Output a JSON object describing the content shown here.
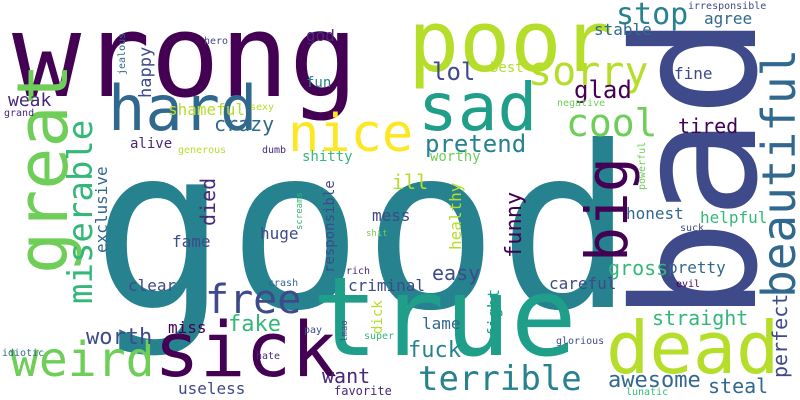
{
  "background": "#ffffff",
  "palette": {
    "dark_purple": "#440154",
    "purple": "#482878",
    "indigo": "#3e4a89",
    "blue": "#31688e",
    "teal_blue": "#26828e",
    "teal": "#1f9e89",
    "green": "#35b779",
    "light_green": "#6ece58",
    "lime": "#b5de2b",
    "yellow": "#fde725"
  },
  "words": [
    {
      "text": "good",
      "color": "#26828e"
    },
    {
      "text": "bad",
      "color": "#3e4a89"
    },
    {
      "text": "wrong",
      "color": "#440154"
    },
    {
      "text": "true",
      "color": "#1f9e89"
    },
    {
      "text": "poor",
      "color": "#b5de2b"
    },
    {
      "text": "hard",
      "color": "#31688e"
    },
    {
      "text": "sad",
      "color": "#1f9e89"
    },
    {
      "text": "sick",
      "color": "#440154"
    },
    {
      "text": "dead",
      "color": "#b5de2b"
    },
    {
      "text": "great",
      "color": "#6ece58"
    },
    {
      "text": "big",
      "color": "#440154"
    },
    {
      "text": "beautiful",
      "color": "#31688e"
    },
    {
      "text": "nice",
      "color": "#fde725"
    },
    {
      "text": "weird",
      "color": "#6ece58"
    },
    {
      "text": "sorry",
      "color": "#b5de2b"
    },
    {
      "text": "miserable",
      "color": "#35b779"
    },
    {
      "text": "free",
      "color": "#3e4a89"
    },
    {
      "text": "terrible",
      "color": "#26828e"
    },
    {
      "text": "cool",
      "color": "#6ece58"
    },
    {
      "text": "stop",
      "color": "#26828e"
    },
    {
      "text": "perfect",
      "color": "#3e4a89"
    },
    {
      "text": "pretend",
      "color": "#26828e"
    },
    {
      "text": "lol",
      "color": "#3e4a89"
    },
    {
      "text": "glad",
      "color": "#440154"
    },
    {
      "text": "tired",
      "color": "#440154"
    },
    {
      "text": "funny",
      "color": "#440154"
    },
    {
      "text": "died",
      "color": "#482878"
    },
    {
      "text": "fake",
      "color": "#35b779"
    },
    {
      "text": "worth",
      "color": "#3e4a89"
    },
    {
      "text": "fuck",
      "color": "#26828e"
    },
    {
      "text": "awesome",
      "color": "#31688e"
    },
    {
      "text": "easy",
      "color": "#3e4a89"
    },
    {
      "text": "want",
      "color": "#482878"
    },
    {
      "text": "crazy",
      "color": "#31688e"
    },
    {
      "text": "happy",
      "color": "#3e4a89"
    },
    {
      "text": "ill",
      "color": "#b5de2b"
    },
    {
      "text": "gross",
      "color": "#35b779"
    },
    {
      "text": "straight",
      "color": "#35b779"
    },
    {
      "text": "steal",
      "color": "#31688e"
    },
    {
      "text": "weak",
      "color": "#482878"
    },
    {
      "text": "shameful",
      "color": "#b5de2b"
    },
    {
      "text": "agree",
      "color": "#31688e"
    },
    {
      "text": "stable",
      "color": "#31688e"
    },
    {
      "text": "fine",
      "color": "#3e4a89"
    },
    {
      "text": "god",
      "color": "#482878"
    },
    {
      "text": "fun",
      "color": "#26828e"
    },
    {
      "text": "best",
      "color": "#b5de2b"
    },
    {
      "text": "alive",
      "color": "#482878"
    },
    {
      "text": "shitty",
      "color": "#35b779"
    },
    {
      "text": "worthy",
      "color": "#6ece58"
    },
    {
      "text": "exclusive",
      "color": "#31688e"
    },
    {
      "text": "fame",
      "color": "#3e4a89"
    },
    {
      "text": "huge",
      "color": "#3e4a89"
    },
    {
      "text": "mess",
      "color": "#3e4a89"
    },
    {
      "text": "responsible",
      "color": "#3e4a89"
    },
    {
      "text": "healthy",
      "color": "#b5de2b"
    },
    {
      "text": "honest",
      "color": "#31688e"
    },
    {
      "text": "helpful",
      "color": "#35b779"
    },
    {
      "text": "clear",
      "color": "#3e4a89"
    },
    {
      "text": "criminal",
      "color": "#3e4a89"
    },
    {
      "text": "careful",
      "color": "#3e4a89"
    },
    {
      "text": "pretty",
      "color": "#31688e"
    },
    {
      "text": "miss",
      "color": "#440154"
    },
    {
      "text": "lame",
      "color": "#31688e"
    },
    {
      "text": "fight",
      "color": "#1f9e89"
    },
    {
      "text": "dick",
      "color": "#b5de2b"
    },
    {
      "text": "useless",
      "color": "#3e4a89"
    },
    {
      "text": "favorite",
      "color": "#482878"
    },
    {
      "text": "hero",
      "color": "#3e4a89"
    },
    {
      "text": "jealous",
      "color": "#31688e"
    },
    {
      "text": "grand",
      "color": "#482878"
    },
    {
      "text": "sexy",
      "color": "#b5de2b"
    },
    {
      "text": "negative",
      "color": "#6ece58"
    },
    {
      "text": "irresponsible",
      "color": "#3e4a89"
    },
    {
      "text": "generous",
      "color": "#b5de2b"
    },
    {
      "text": "dumb",
      "color": "#482878"
    },
    {
      "text": "screams",
      "color": "#35b779"
    },
    {
      "text": "shit",
      "color": "#6ece58"
    },
    {
      "text": "powerful",
      "color": "#6ece58"
    },
    {
      "text": "suck",
      "color": "#3e4a89"
    },
    {
      "text": "rich",
      "color": "#482878"
    },
    {
      "text": "crash",
      "color": "#31688e"
    },
    {
      "text": "pay",
      "color": "#3e4a89"
    },
    {
      "text": "lmao",
      "color": "#3e4a89"
    },
    {
      "text": "super",
      "color": "#35b779"
    },
    {
      "text": "glorious",
      "color": "#3e4a89"
    },
    {
      "text": "evil",
      "color": "#440154"
    },
    {
      "text": "lunatic",
      "color": "#35b779"
    },
    {
      "text": "idiotic",
      "color": "#31688e"
    },
    {
      "text": "hate",
      "color": "#482878"
    }
  ]
}
